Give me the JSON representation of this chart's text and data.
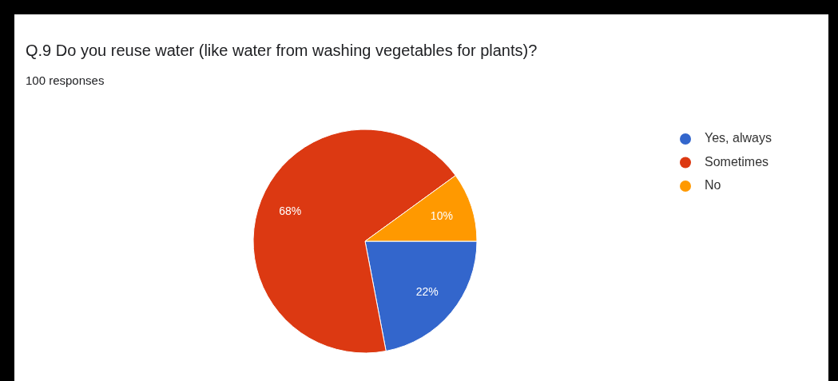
{
  "chart_data": {
    "type": "pie",
    "title": "Q.9  Do you reuse water (like water from washing vegetables for plants)?",
    "subtitle": "100 responses",
    "categories": [
      "Yes, always",
      "Sometimes",
      "No"
    ],
    "values": [
      22,
      68,
      10
    ],
    "colors": [
      "#3366cc",
      "#dc3912",
      "#ff9900"
    ],
    "legend": "right",
    "value_labels": [
      "22%",
      "68%",
      "10%"
    ]
  }
}
